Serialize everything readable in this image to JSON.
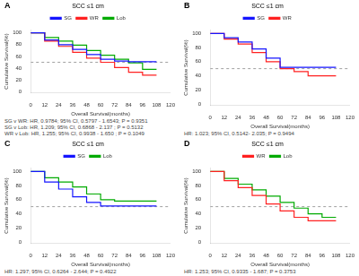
{
  "chart_data": [
    {
      "type": "line",
      "line_style": "step",
      "panel_label": "A",
      "title": "SCC ≤1 cm",
      "xlabel": "Overall Survival(months)",
      "ylabel": "Cumulative Survival(%)",
      "xlim": [
        0,
        120
      ],
      "ylim": [
        -2,
        105
      ],
      "xticks": [
        0,
        12,
        24,
        36,
        48,
        60,
        72,
        84,
        96,
        108,
        120
      ],
      "yticks": [
        0,
        20,
        40,
        60,
        80,
        100
      ],
      "grid": false,
      "legend": "top",
      "median_line": {
        "value": 50,
        "color": "#888888",
        "line_style": "dashed"
      },
      "series": [
        {
          "name": "SG",
          "color": "#1515ff",
          "x": [
            0,
            12,
            24,
            36,
            48,
            60,
            72,
            84,
            96,
            108
          ],
          "values": [
            100,
            88,
            80,
            72,
            63,
            55,
            52,
            51,
            51,
            51
          ]
        },
        {
          "name": "WR",
          "color": "#ff2020",
          "x": [
            0,
            12,
            24,
            36,
            48,
            60,
            72,
            84,
            96,
            108
          ],
          "values": [
            100,
            86,
            77,
            67,
            57,
            50,
            41,
            33,
            28,
            28
          ]
        },
        {
          "name": "Lob",
          "color": "#00aa00",
          "x": [
            0,
            12,
            24,
            36,
            48,
            60,
            72,
            84,
            96,
            108
          ],
          "values": [
            100,
            92,
            86,
            79,
            70,
            62,
            55,
            49,
            38,
            38
          ]
        }
      ],
      "annotations": [
        "SG v WR: HR, 0.9784; 95% CI, 0.5797 - 1.6543; P = 0.9351",
        "SG v Lob: HR, 1.209; 95% CI, 0.6868 - 2.137 ; P = 0.5132",
        "WR v Lob: HR, 1.255; 95% CI, 0.9938 - 1.650 ; P = 0.1049"
      ]
    },
    {
      "type": "line",
      "line_style": "step",
      "panel_label": "B",
      "title": "SCC ≤1 cm",
      "xlabel": "Overall Survival(months)",
      "ylabel": "Cumulative Survival(%)",
      "xlim": [
        0,
        120
      ],
      "ylim": [
        -2,
        105
      ],
      "xticks": [
        0,
        12,
        24,
        36,
        48,
        60,
        72,
        84,
        96,
        108,
        120
      ],
      "yticks": [
        0,
        20,
        40,
        60,
        80,
        100
      ],
      "grid": false,
      "legend": "top",
      "median_line": {
        "value": 50,
        "color": "#888888",
        "line_style": "dashed"
      },
      "series": [
        {
          "name": "SG",
          "color": "#1515ff",
          "x": [
            0,
            12,
            24,
            36,
            48,
            60,
            72,
            84,
            96,
            108
          ],
          "values": [
            100,
            94,
            88,
            78,
            65,
            52,
            52,
            52,
            52,
            52
          ]
        },
        {
          "name": "WR",
          "color": "#ff2020",
          "x": [
            0,
            12,
            24,
            36,
            48,
            60,
            72,
            84,
            96,
            108
          ],
          "values": [
            100,
            92,
            85,
            73,
            60,
            50,
            46,
            40,
            40,
            40
          ]
        }
      ],
      "annotations": [
        "HR: 1.023; 95% CI, 0.5142- 2.035; P = 0.9494"
      ]
    },
    {
      "type": "line",
      "line_style": "step",
      "panel_label": "C",
      "title": "SCC ≤1 cm",
      "xlabel": "Overall Survival(months)",
      "ylabel": "Cumulative Survival(%)",
      "xlim": [
        0,
        120
      ],
      "ylim": [
        -2,
        105
      ],
      "xticks": [
        0,
        12,
        24,
        36,
        48,
        60,
        72,
        84,
        96,
        108,
        120
      ],
      "yticks": [
        0,
        20,
        40,
        60,
        80,
        100
      ],
      "grid": false,
      "legend": "top",
      "median_line": {
        "value": 50,
        "color": "#888888",
        "line_style": "dashed"
      },
      "series": [
        {
          "name": "SG",
          "color": "#1515ff",
          "x": [
            0,
            12,
            24,
            36,
            48,
            60,
            72,
            84,
            96,
            108
          ],
          "values": [
            100,
            85,
            75,
            64,
            56,
            51,
            51,
            51,
            51,
            51
          ]
        },
        {
          "name": "Lob",
          "color": "#00aa00",
          "x": [
            0,
            12,
            24,
            36,
            48,
            60,
            72,
            84,
            96,
            108
          ],
          "values": [
            100,
            91,
            85,
            78,
            68,
            60,
            58,
            58,
            58,
            58
          ]
        }
      ],
      "annotations": [
        "HR: 1.297; 95% CI, 0.6264 - 2.644; P = 0.4922"
      ]
    },
    {
      "type": "line",
      "line_style": "step",
      "panel_label": "D",
      "title": "SCC ≤1 cm",
      "xlabel": "Overall Survival(months)",
      "ylabel": "Cumulative Survival(%)",
      "xlim": [
        0,
        120
      ],
      "ylim": [
        -2,
        105
      ],
      "xticks": [
        0,
        12,
        24,
        36,
        48,
        60,
        72,
        84,
        96,
        108,
        120
      ],
      "yticks": [
        0,
        20,
        40,
        60,
        80,
        100
      ],
      "grid": false,
      "legend": "top",
      "median_line": {
        "value": 50,
        "color": "#888888",
        "line_style": "dashed"
      },
      "series": [
        {
          "name": "WR",
          "color": "#ff2020",
          "x": [
            0,
            12,
            24,
            36,
            48,
            60,
            72,
            84,
            96,
            108
          ],
          "values": [
            100,
            87,
            77,
            66,
            54,
            44,
            35,
            30,
            30,
            30
          ]
        },
        {
          "name": "Lob",
          "color": "#00aa00",
          "x": [
            0,
            12,
            24,
            36,
            48,
            60,
            72,
            84,
            96,
            108
          ],
          "values": [
            100,
            90,
            82,
            74,
            65,
            56,
            48,
            40,
            35,
            35
          ]
        }
      ],
      "annotations": [
        "HR: 1.253; 95% CI, 0.9335 - 1.687; P = 0.3753"
      ]
    }
  ]
}
